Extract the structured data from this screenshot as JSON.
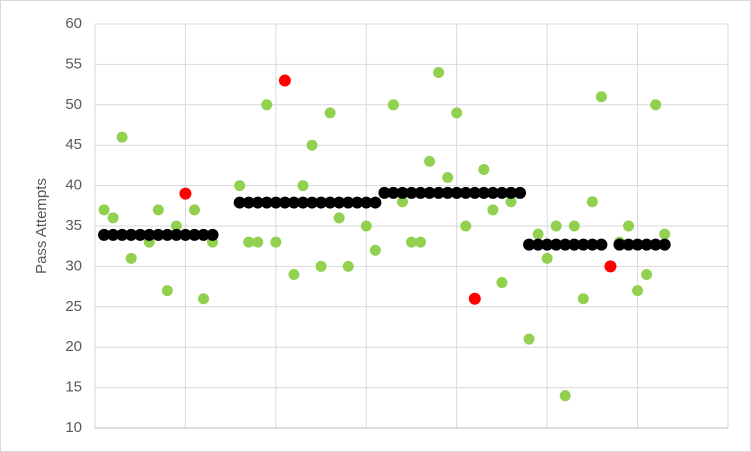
{
  "chart_data": {
    "type": "scatter",
    "y_label": "Pass Attempts",
    "xlim": [
      0,
      70
    ],
    "xticks": [
      10,
      20,
      30,
      40,
      50,
      60,
      70
    ],
    "ylim": [
      10,
      60
    ],
    "yticks": [
      10,
      15,
      20,
      25,
      30,
      35,
      40,
      45,
      50,
      55,
      60
    ],
    "grid": true,
    "series": [
      {
        "color": "#92d050",
        "size": 5.5,
        "x": [
          1,
          2,
          3,
          4,
          6,
          7,
          8,
          9,
          11,
          12,
          13,
          16,
          17,
          18,
          19,
          20,
          22,
          23,
          24,
          25,
          26,
          27,
          28,
          30,
          31,
          33,
          34,
          35,
          36,
          37,
          38,
          39,
          40,
          41,
          43,
          44,
          45,
          46,
          48,
          49,
          50,
          51,
          52,
          53,
          54,
          55,
          56,
          58,
          59,
          60,
          61,
          62,
          63
        ],
        "values": [
          37,
          36,
          46,
          31,
          33,
          37,
          27,
          35,
          37,
          26,
          33,
          40,
          33,
          33,
          50,
          33,
          29,
          40,
          45,
          30,
          49,
          36,
          30,
          35,
          32,
          50,
          38,
          33,
          33,
          43,
          54,
          41,
          49,
          35,
          42,
          37,
          28,
          38,
          21,
          34,
          31,
          35,
          14,
          35,
          26,
          38,
          51,
          33,
          35,
          27,
          29,
          50,
          34
        ]
      },
      {
        "color": "#ff0000",
        "size": 6,
        "x": [
          10,
          21,
          42,
          57
        ],
        "values": [
          39,
          53,
          26,
          30
        ]
      },
      {
        "color": "#000000",
        "size": 6,
        "x": [
          1,
          2,
          3,
          4,
          5,
          6,
          7,
          8,
          9,
          10,
          11,
          12,
          13,
          16,
          17,
          18,
          19,
          20,
          21,
          22,
          23,
          24,
          25,
          26,
          27,
          28,
          29,
          30,
          31,
          32,
          33,
          34,
          35,
          36,
          37,
          38,
          39,
          40,
          41,
          42,
          43,
          44,
          45,
          46,
          47,
          48,
          49,
          50,
          51,
          52,
          53,
          54,
          55,
          56,
          58,
          59,
          60,
          61,
          62,
          63
        ],
        "values": [
          33.9,
          33.9,
          33.9,
          33.9,
          33.9,
          33.9,
          33.9,
          33.9,
          33.9,
          33.9,
          33.9,
          33.9,
          33.9,
          37.9,
          37.9,
          37.9,
          37.9,
          37.9,
          37.9,
          37.9,
          37.9,
          37.9,
          37.9,
          37.9,
          37.9,
          37.9,
          37.9,
          37.9,
          37.9,
          39.1,
          39.1,
          39.1,
          39.1,
          39.1,
          39.1,
          39.1,
          39.1,
          39.1,
          39.1,
          39.1,
          39.1,
          39.1,
          39.1,
          39.1,
          39.1,
          32.7,
          32.7,
          32.7,
          32.7,
          32.7,
          32.7,
          32.7,
          32.7,
          32.7,
          32.7,
          32.7,
          32.7,
          32.7,
          32.7,
          32.7
        ]
      }
    ]
  }
}
